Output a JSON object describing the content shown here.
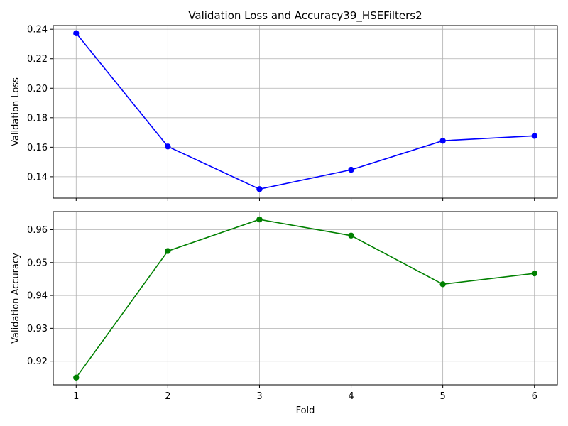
{
  "title": "Validation Loss and Accuracy39_HSEFilters2",
  "chart_data": [
    {
      "type": "line",
      "title": "Validation Loss and Accuracy39_HSEFilters2",
      "xlabel": "",
      "ylabel": "Validation Loss",
      "x": [
        1,
        2,
        3,
        4,
        5,
        6
      ],
      "xticks": [
        "1",
        "2",
        "3",
        "4",
        "5",
        "6"
      ],
      "xlim": [
        0.75,
        6.25
      ],
      "ylim": [
        0.1255,
        0.2425
      ],
      "yticks": [
        0.14,
        0.16,
        0.18,
        0.2,
        0.22,
        0.24
      ],
      "ytick_labels": [
        "0.14",
        "0.16",
        "0.18",
        "0.20",
        "0.22",
        "0.24"
      ],
      "grid": true,
      "series": [
        {
          "values": [
            0.2373,
            0.1605,
            0.1316,
            0.1447,
            0.1644,
            0.1677
          ],
          "color": "#0000ff",
          "marker": "circle"
        }
      ]
    },
    {
      "type": "line",
      "xlabel": "Fold",
      "ylabel": "Validation Accuracy",
      "x": [
        1,
        2,
        3,
        4,
        5,
        6
      ],
      "xticks": [
        "1",
        "2",
        "3",
        "4",
        "5",
        "6"
      ],
      "xlim": [
        0.75,
        6.25
      ],
      "ylim": [
        0.9128,
        0.9655
      ],
      "yticks": [
        0.92,
        0.93,
        0.94,
        0.95,
        0.96
      ],
      "ytick_labels": [
        "0.92",
        "0.93",
        "0.94",
        "0.95",
        "0.96"
      ],
      "grid": true,
      "series": [
        {
          "values": [
            0.915,
            0.9535,
            0.9631,
            0.9582,
            0.9434,
            0.9467
          ],
          "color": "#008000",
          "marker": "circle"
        }
      ]
    }
  ]
}
